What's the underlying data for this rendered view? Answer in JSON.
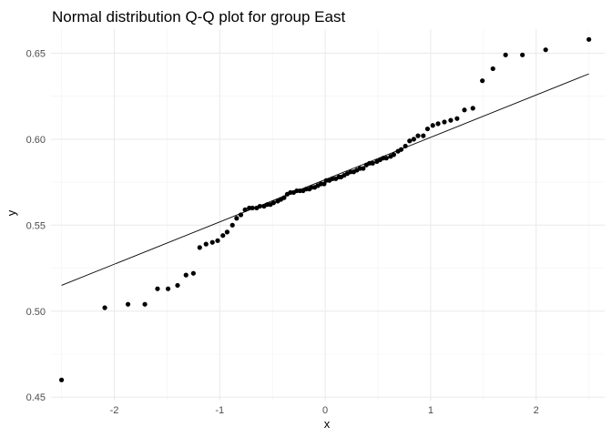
{
  "chart_data": {
    "type": "scatter",
    "title": "Normal distribution Q-Q plot for group East",
    "xlabel": "x",
    "ylabel": "y",
    "xlim": [
      -2.6,
      2.65
    ],
    "ylim": [
      0.448,
      0.664
    ],
    "x_ticks": [
      -2,
      -1,
      0,
      1,
      2
    ],
    "x_tick_labels": [
      "-2",
      "-1",
      "0",
      "1",
      "2"
    ],
    "y_ticks": [
      0.45,
      0.5,
      0.55,
      0.6,
      0.65
    ],
    "y_tick_labels": [
      "0.45",
      "0.50",
      "0.55",
      "0.60",
      "0.65"
    ],
    "grid": true,
    "reference_line": {
      "x": [
        -2.5,
        2.5
      ],
      "y": [
        0.515,
        0.638
      ]
    },
    "points": [
      [
        -2.5,
        0.46
      ],
      [
        -2.09,
        0.502
      ],
      [
        -1.87,
        0.504
      ],
      [
        -1.71,
        0.504
      ],
      [
        -1.59,
        0.513
      ],
      [
        -1.49,
        0.513
      ],
      [
        -1.4,
        0.515
      ],
      [
        -1.32,
        0.521
      ],
      [
        -1.25,
        0.522
      ],
      [
        -1.19,
        0.537
      ],
      [
        -1.13,
        0.539
      ],
      [
        -1.07,
        0.54
      ],
      [
        -1.02,
        0.541
      ],
      [
        -0.97,
        0.544
      ],
      [
        -0.93,
        0.546
      ],
      [
        -0.88,
        0.55
      ],
      [
        -0.84,
        0.554
      ],
      [
        -0.8,
        0.556
      ],
      [
        -0.76,
        0.559
      ],
      [
        -0.72,
        0.56
      ],
      [
        -0.69,
        0.56
      ],
      [
        -0.65,
        0.56
      ],
      [
        -0.62,
        0.561
      ],
      [
        -0.58,
        0.561
      ],
      [
        -0.55,
        0.562
      ],
      [
        -0.52,
        0.562
      ],
      [
        -0.49,
        0.563
      ],
      [
        -0.45,
        0.564
      ],
      [
        -0.42,
        0.565
      ],
      [
        -0.39,
        0.566
      ],
      [
        -0.36,
        0.568
      ],
      [
        -0.33,
        0.569
      ],
      [
        -0.3,
        0.569
      ],
      [
        -0.27,
        0.57
      ],
      [
        -0.24,
        0.57
      ],
      [
        -0.21,
        0.57
      ],
      [
        -0.18,
        0.571
      ],
      [
        -0.15,
        0.571
      ],
      [
        -0.13,
        0.572
      ],
      [
        -0.1,
        0.572
      ],
      [
        -0.07,
        0.573
      ],
      [
        -0.04,
        0.574
      ],
      [
        -0.01,
        0.574
      ],
      [
        0.01,
        0.576
      ],
      [
        0.04,
        0.576
      ],
      [
        0.07,
        0.577
      ],
      [
        0.1,
        0.577
      ],
      [
        0.13,
        0.578
      ],
      [
        0.15,
        0.578
      ],
      [
        0.18,
        0.579
      ],
      [
        0.21,
        0.58
      ],
      [
        0.24,
        0.581
      ],
      [
        0.27,
        0.581
      ],
      [
        0.3,
        0.582
      ],
      [
        0.33,
        0.583
      ],
      [
        0.36,
        0.583
      ],
      [
        0.39,
        0.585
      ],
      [
        0.42,
        0.586
      ],
      [
        0.45,
        0.586
      ],
      [
        0.49,
        0.587
      ],
      [
        0.52,
        0.588
      ],
      [
        0.55,
        0.589
      ],
      [
        0.58,
        0.589
      ],
      [
        0.62,
        0.59
      ],
      [
        0.65,
        0.591
      ],
      [
        0.69,
        0.593
      ],
      [
        0.72,
        0.594
      ],
      [
        0.76,
        0.596
      ],
      [
        0.8,
        0.599
      ],
      [
        0.84,
        0.6
      ],
      [
        0.88,
        0.602
      ],
      [
        0.93,
        0.602
      ],
      [
        0.97,
        0.606
      ],
      [
        1.02,
        0.608
      ],
      [
        1.07,
        0.609
      ],
      [
        1.13,
        0.61
      ],
      [
        1.19,
        0.611
      ],
      [
        1.25,
        0.612
      ],
      [
        1.32,
        0.617
      ],
      [
        1.4,
        0.618
      ],
      [
        1.49,
        0.634
      ],
      [
        1.59,
        0.641
      ],
      [
        1.71,
        0.649
      ],
      [
        1.87,
        0.649
      ],
      [
        2.09,
        0.652
      ],
      [
        2.5,
        0.658
      ]
    ]
  }
}
